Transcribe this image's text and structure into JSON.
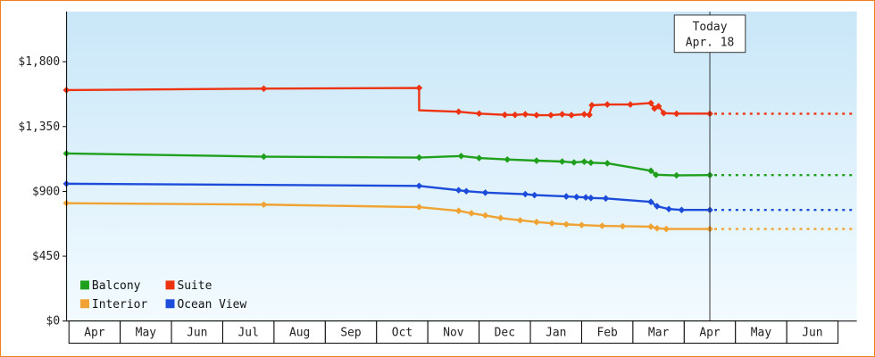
{
  "frame": {
    "border_color": "#f08019",
    "background": "#ffffff"
  },
  "chart_data": {
    "type": "line",
    "grid": false,
    "plot_bg_top": "#c9e7f8",
    "plot_bg_bottom": "#f3fbff",
    "axis_color": "#000000",
    "text_color": "#222222",
    "ylim": [
      0,
      2145
    ],
    "y_ticks": [
      {
        "value": 0,
        "label": "$0"
      },
      {
        "value": 450,
        "label": "$450"
      },
      {
        "value": 900,
        "label": "$900"
      },
      {
        "value": 1350,
        "label": "$1,350"
      },
      {
        "value": 1800,
        "label": "$1,800"
      }
    ],
    "x_months": [
      "Apr",
      "May",
      "Jun",
      "Jul",
      "Aug",
      "Sep",
      "Oct",
      "Nov",
      "Dec",
      "Jan",
      "Feb",
      "Mar",
      "Apr",
      "May",
      "Jun"
    ],
    "today": {
      "line1": "Today",
      "line2": "Apr. 18",
      "month_index": 12
    },
    "forecast_dash_end": 14.8,
    "series": [
      {
        "name": "Interior",
        "color": "#f0a232",
        "points": [
          [
            -0.55,
            815
          ],
          [
            3.3,
            805
          ],
          [
            6.33,
            788
          ],
          [
            7.1,
            762
          ],
          [
            7.35,
            745
          ],
          [
            7.62,
            730
          ],
          [
            7.92,
            712
          ],
          [
            8.3,
            696
          ],
          [
            8.62,
            684
          ],
          [
            8.92,
            675
          ],
          [
            9.2,
            668
          ],
          [
            9.5,
            663
          ],
          [
            9.9,
            658
          ],
          [
            10.3,
            655
          ],
          [
            10.85,
            652
          ],
          [
            10.97,
            641
          ],
          [
            11.15,
            636
          ],
          [
            12,
            636
          ]
        ]
      },
      {
        "name": "Ocean View",
        "color": "#1d4cdb",
        "points": [
          [
            -0.55,
            950
          ],
          [
            6.33,
            935
          ],
          [
            7.1,
            905
          ],
          [
            7.25,
            898
          ],
          [
            7.62,
            888
          ],
          [
            8.4,
            878
          ],
          [
            8.58,
            871
          ],
          [
            9.2,
            862
          ],
          [
            9.4,
            858
          ],
          [
            9.58,
            855
          ],
          [
            9.68,
            851
          ],
          [
            9.97,
            848
          ],
          [
            10.85,
            824
          ],
          [
            10.97,
            794
          ],
          [
            11.2,
            774
          ],
          [
            11.45,
            768
          ],
          [
            12,
            768
          ]
        ]
      },
      {
        "name": "Balcony",
        "color": "#1fa01c",
        "points": [
          [
            -0.55,
            1160
          ],
          [
            3.3,
            1138
          ],
          [
            6.33,
            1132
          ],
          [
            7.15,
            1142
          ],
          [
            7.5,
            1128
          ],
          [
            8.05,
            1118
          ],
          [
            8.62,
            1110
          ],
          [
            9.12,
            1104
          ],
          [
            9.35,
            1098
          ],
          [
            9.55,
            1103
          ],
          [
            9.68,
            1096
          ],
          [
            10.0,
            1092
          ],
          [
            10.85,
            1040
          ],
          [
            10.95,
            1012
          ],
          [
            11.35,
            1008
          ],
          [
            12,
            1010
          ]
        ]
      },
      {
        "name": "Suite",
        "color": "#ee3311",
        "points": [
          [
            -0.55,
            1600
          ],
          [
            3.3,
            1610
          ],
          [
            6.33,
            1615
          ],
          [
            6.33,
            1460
          ],
          [
            7.1,
            1450
          ],
          [
            7.5,
            1437
          ],
          [
            8.0,
            1428
          ],
          [
            8.2,
            1428
          ],
          [
            8.4,
            1432
          ],
          [
            8.62,
            1426
          ],
          [
            8.9,
            1426
          ],
          [
            9.12,
            1432
          ],
          [
            9.3,
            1426
          ],
          [
            9.55,
            1432
          ],
          [
            9.65,
            1428
          ],
          [
            9.7,
            1495
          ],
          [
            10.0,
            1500
          ],
          [
            10.45,
            1500
          ],
          [
            10.85,
            1510
          ],
          [
            10.92,
            1472
          ],
          [
            11.0,
            1488
          ],
          [
            11.1,
            1440
          ],
          [
            11.35,
            1436
          ],
          [
            12,
            1436
          ]
        ]
      }
    ],
    "legend": {
      "position": "bottom-left",
      "rows": [
        [
          "Balcony",
          "Suite"
        ],
        [
          "Interior",
          "Ocean View"
        ]
      ]
    }
  }
}
